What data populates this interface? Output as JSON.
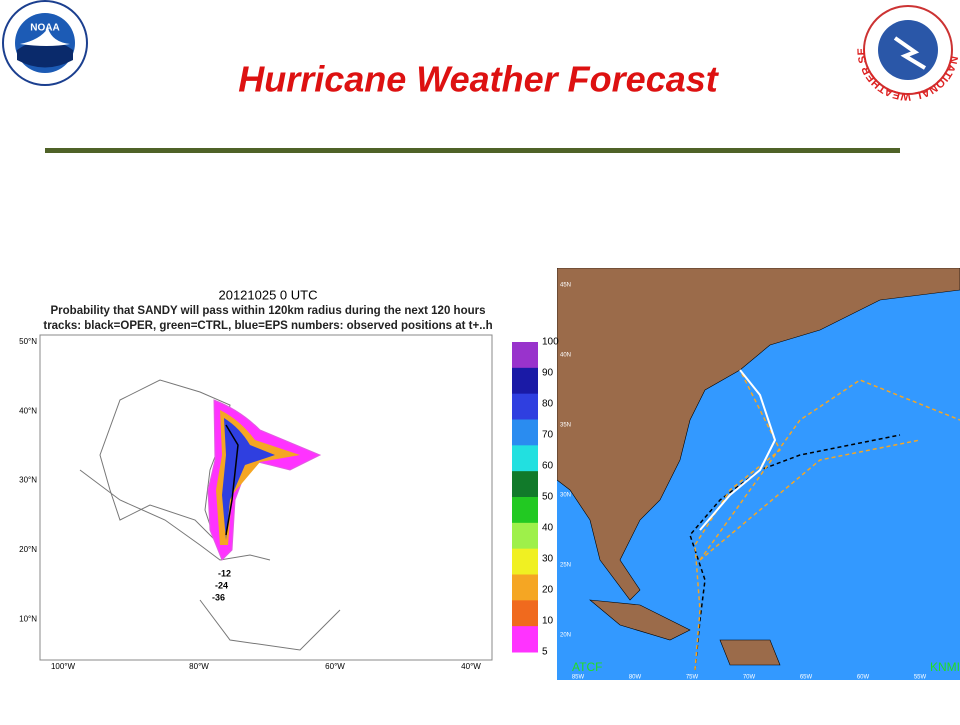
{
  "header": {
    "title": "Hurricane Weather Forecast",
    "logo_left": "NOAA",
    "logo_right": "NATIONAL WEATHER SERVICE"
  },
  "left_map": {
    "title": "20121025 0 UTC",
    "subtitle": "Probability that SANDY will pass within 120km radius during the next 120 hours",
    "legend_note": "tracks: black=OPER, green=CTRL, blue=EPS numbers: observed positions at t+..h",
    "lat_labels": [
      "50°N",
      "40°N",
      "30°N",
      "20°N",
      "10°N"
    ],
    "lon_labels": [
      "100°W",
      "80°W",
      "60°W",
      "40°W"
    ],
    "colorbar": {
      "values": [
        100,
        90,
        80,
        70,
        60,
        50,
        40,
        30,
        20,
        10,
        5
      ],
      "colors": [
        "#9933cc",
        "#1a1aa6",
        "#2f3fe0",
        "#2a8cf0",
        "#22e0e0",
        "#117a2a",
        "#22c922",
        "#9ef04a",
        "#f0f022",
        "#f5a623",
        "#f06a1e",
        "#ff33ff"
      ]
    },
    "track_labels": [
      "-12",
      "-24",
      "-36"
    ]
  },
  "right_map": {
    "left_label": "ATCF",
    "right_label": "KNMI",
    "lon_labels": [
      "85W",
      "80W",
      "75W",
      "70W",
      "65W",
      "60W",
      "55W"
    ],
    "lat_labels": [
      "45N",
      "40N",
      "35N",
      "30N",
      "25N",
      "20N"
    ]
  }
}
